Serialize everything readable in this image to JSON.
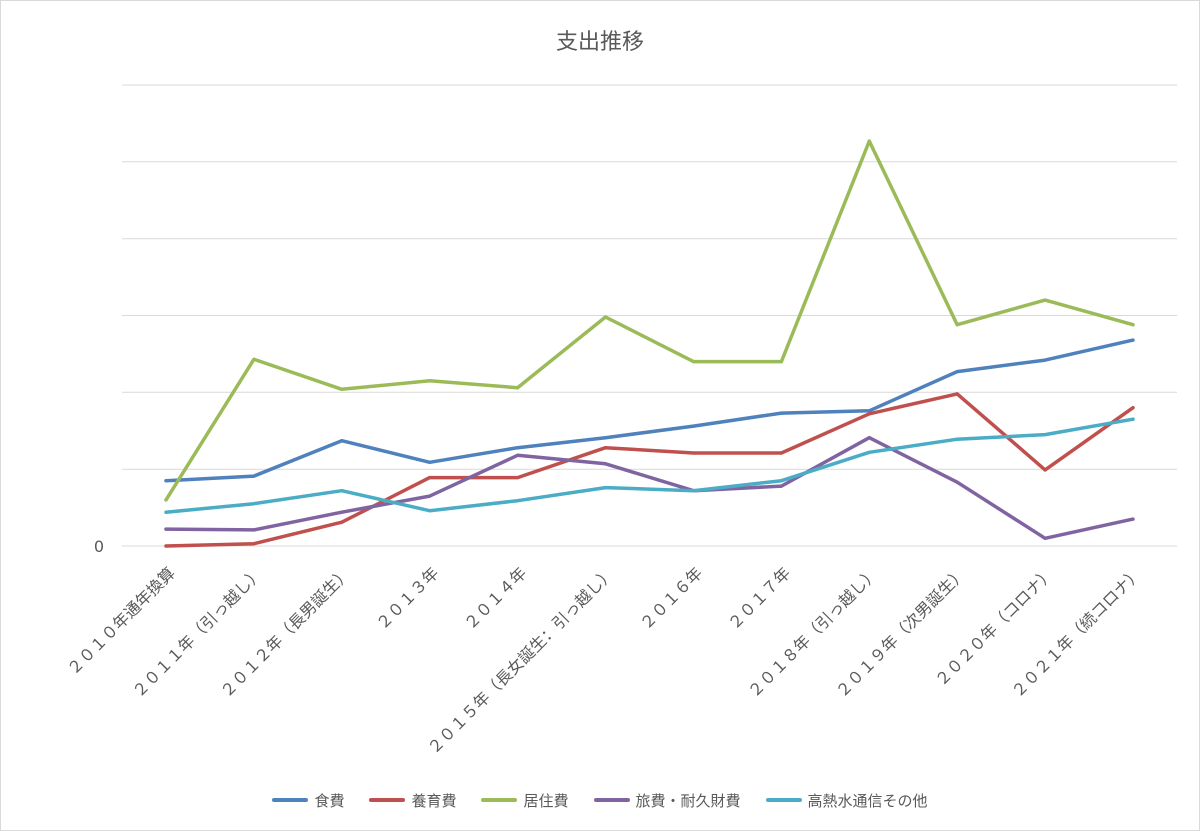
{
  "chart_data": {
    "type": "line",
    "title": "支出推移",
    "xlabel": "",
    "ylabel": "",
    "categories": [
      "２０１０年通年換算",
      "２０１１年（引っ越し）",
      "２０１２年（長男誕生）",
      "２０１３年",
      "２０１４年",
      "２０１５年（長女誕生：引っ越し）",
      "２０１６年",
      "２０１７年",
      "２０１８年（引っ越し）",
      "２０１９年（次男誕生）",
      "２０２０年（コロナ）",
      "２０２１年（続コロナ）"
    ],
    "ylim": [
      0,
      6
    ],
    "grid_step": 1,
    "ytick_labels": [
      "0"
    ],
    "grid": true,
    "legend_position": "bottom",
    "series": [
      {
        "name": "食費",
        "color": "#4f81bd",
        "values": [
          0.85,
          0.91,
          1.37,
          1.09,
          1.28,
          1.41,
          1.56,
          1.73,
          1.76,
          2.27,
          2.42,
          2.68
        ]
      },
      {
        "name": "養育費",
        "color": "#c0504d",
        "values": [
          0.0,
          0.03,
          0.31,
          0.89,
          0.89,
          1.28,
          1.21,
          1.21,
          1.72,
          1.98,
          0.99,
          1.8
        ]
      },
      {
        "name": "居住費",
        "color": "#9bbb59",
        "values": [
          0.6,
          2.43,
          2.04,
          2.15,
          2.06,
          2.98,
          2.4,
          2.4,
          5.27,
          2.88,
          3.2,
          2.88
        ]
      },
      {
        "name": "旅費・耐久財費",
        "color": "#8064a2",
        "values": [
          0.22,
          0.21,
          0.44,
          0.65,
          1.18,
          1.07,
          0.72,
          0.78,
          1.41,
          0.83,
          0.1,
          0.35
        ]
      },
      {
        "name": "高熱水通信その他",
        "color": "#4bacc6",
        "values": [
          0.44,
          0.55,
          0.72,
          0.46,
          0.59,
          0.76,
          0.72,
          0.85,
          1.22,
          1.39,
          1.45,
          1.65
        ]
      }
    ]
  }
}
